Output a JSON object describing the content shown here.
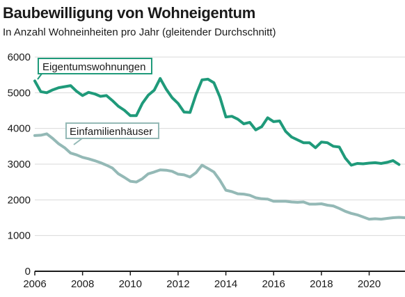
{
  "header": {
    "title": "Baubewilligung von Wohneigentum",
    "subtitle": "In Anzahl Wohneinheiten pro Jahr (gleitender Durchschnitt)"
  },
  "colors": {
    "eigentum": "#1f9a7a",
    "einfamilien": "#94b9b6",
    "axis": "#1a1a1a",
    "grid": "#d9d9d9"
  },
  "chart_data": {
    "type": "line",
    "title": "Baubewilligung von Wohneigentum",
    "subtitle": "In Anzahl Wohneinheiten pro Jahr (gleitender Durchschnitt)",
    "xlabel": "",
    "ylabel": "",
    "xlim": [
      2006,
      2021.5
    ],
    "ylim": [
      0,
      6000
    ],
    "xticks": [
      2006,
      2008,
      2010,
      2012,
      2014,
      2016,
      2018,
      2020
    ],
    "yticks": [
      0,
      1000,
      2000,
      3000,
      4000,
      5000,
      6000
    ],
    "grid": true,
    "series": [
      {
        "name": "Eigentumswohnungen",
        "color": "#1f9a7a",
        "points": [
          [
            2006.0,
            5330
          ],
          [
            2006.25,
            5030
          ],
          [
            2006.5,
            5000
          ],
          [
            2006.75,
            5080
          ],
          [
            2007.0,
            5140
          ],
          [
            2007.25,
            5170
          ],
          [
            2007.5,
            5200
          ],
          [
            2007.75,
            5040
          ],
          [
            2008.0,
            4920
          ],
          [
            2008.25,
            5010
          ],
          [
            2008.5,
            4970
          ],
          [
            2008.75,
            4900
          ],
          [
            2009.0,
            4920
          ],
          [
            2009.25,
            4780
          ],
          [
            2009.5,
            4620
          ],
          [
            2009.75,
            4510
          ],
          [
            2010.0,
            4360
          ],
          [
            2010.25,
            4360
          ],
          [
            2010.5,
            4700
          ],
          [
            2010.75,
            4930
          ],
          [
            2011.0,
            5070
          ],
          [
            2011.25,
            5400
          ],
          [
            2011.5,
            5100
          ],
          [
            2011.75,
            4860
          ],
          [
            2012.0,
            4700
          ],
          [
            2012.25,
            4460
          ],
          [
            2012.5,
            4450
          ],
          [
            2012.75,
            4950
          ],
          [
            2013.0,
            5360
          ],
          [
            2013.25,
            5380
          ],
          [
            2013.5,
            5280
          ],
          [
            2013.75,
            4880
          ],
          [
            2014.0,
            4320
          ],
          [
            2014.25,
            4340
          ],
          [
            2014.5,
            4260
          ],
          [
            2014.75,
            4130
          ],
          [
            2015.0,
            4170
          ],
          [
            2015.25,
            3960
          ],
          [
            2015.5,
            4050
          ],
          [
            2015.75,
            4300
          ],
          [
            2016.0,
            4190
          ],
          [
            2016.25,
            4210
          ],
          [
            2016.5,
            3920
          ],
          [
            2016.75,
            3760
          ],
          [
            2017.0,
            3680
          ],
          [
            2017.25,
            3600
          ],
          [
            2017.5,
            3600
          ],
          [
            2017.75,
            3460
          ],
          [
            2018.0,
            3620
          ],
          [
            2018.25,
            3600
          ],
          [
            2018.5,
            3500
          ],
          [
            2018.75,
            3480
          ],
          [
            2019.0,
            3170
          ],
          [
            2019.25,
            2970
          ],
          [
            2019.5,
            3020
          ],
          [
            2019.75,
            3010
          ],
          [
            2020.0,
            3030
          ],
          [
            2020.25,
            3040
          ],
          [
            2020.5,
            3020
          ],
          [
            2020.75,
            3050
          ],
          [
            2021.0,
            3100
          ],
          [
            2021.25,
            2990
          ]
        ]
      },
      {
        "name": "Einfamilienhäuser",
        "color": "#94b9b6",
        "points": [
          [
            2006.0,
            3800
          ],
          [
            2006.25,
            3810
          ],
          [
            2006.5,
            3850
          ],
          [
            2006.75,
            3720
          ],
          [
            2007.0,
            3570
          ],
          [
            2007.25,
            3460
          ],
          [
            2007.5,
            3310
          ],
          [
            2007.75,
            3260
          ],
          [
            2008.0,
            3190
          ],
          [
            2008.25,
            3150
          ],
          [
            2008.5,
            3100
          ],
          [
            2008.75,
            3040
          ],
          [
            2009.0,
            2970
          ],
          [
            2009.25,
            2890
          ],
          [
            2009.5,
            2730
          ],
          [
            2009.75,
            2630
          ],
          [
            2010.0,
            2520
          ],
          [
            2010.25,
            2500
          ],
          [
            2010.5,
            2590
          ],
          [
            2010.75,
            2730
          ],
          [
            2011.0,
            2780
          ],
          [
            2011.25,
            2840
          ],
          [
            2011.5,
            2830
          ],
          [
            2011.75,
            2800
          ],
          [
            2012.0,
            2720
          ],
          [
            2012.25,
            2700
          ],
          [
            2012.5,
            2640
          ],
          [
            2012.75,
            2760
          ],
          [
            2013.0,
            2970
          ],
          [
            2013.25,
            2880
          ],
          [
            2013.5,
            2780
          ],
          [
            2013.75,
            2550
          ],
          [
            2014.0,
            2270
          ],
          [
            2014.25,
            2230
          ],
          [
            2014.5,
            2170
          ],
          [
            2014.75,
            2160
          ],
          [
            2015.0,
            2130
          ],
          [
            2015.25,
            2060
          ],
          [
            2015.5,
            2030
          ],
          [
            2015.75,
            2020
          ],
          [
            2016.0,
            1960
          ],
          [
            2016.25,
            1960
          ],
          [
            2016.5,
            1960
          ],
          [
            2016.75,
            1940
          ],
          [
            2017.0,
            1930
          ],
          [
            2017.25,
            1940
          ],
          [
            2017.5,
            1880
          ],
          [
            2017.75,
            1880
          ],
          [
            2018.0,
            1890
          ],
          [
            2018.25,
            1850
          ],
          [
            2018.5,
            1830
          ],
          [
            2018.75,
            1760
          ],
          [
            2019.0,
            1680
          ],
          [
            2019.25,
            1620
          ],
          [
            2019.5,
            1580
          ],
          [
            2019.75,
            1520
          ],
          [
            2020.0,
            1460
          ],
          [
            2020.25,
            1470
          ],
          [
            2020.5,
            1460
          ],
          [
            2020.75,
            1480
          ],
          [
            2021.0,
            1500
          ],
          [
            2021.25,
            1510
          ],
          [
            2021.5,
            1500
          ]
        ]
      }
    ],
    "annotations": [
      {
        "text": "Eigentumswohnungen",
        "series": 0
      },
      {
        "text": "Einfamilienhäuser",
        "series": 1
      }
    ]
  }
}
